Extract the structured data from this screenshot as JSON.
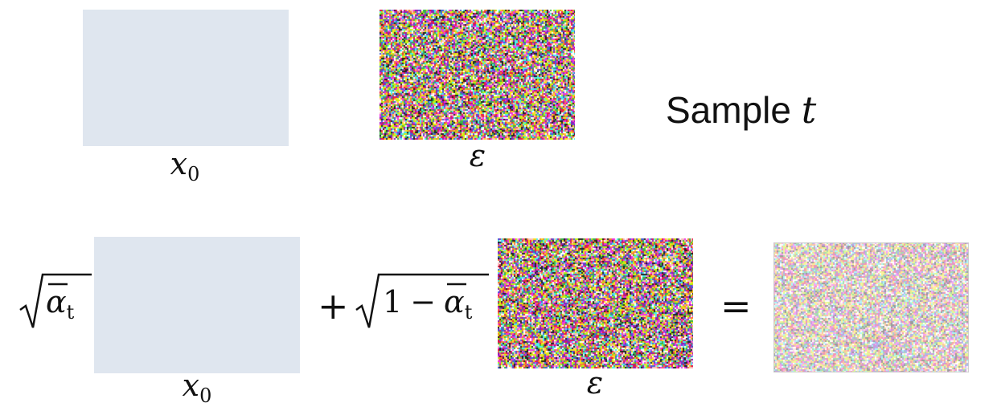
{
  "top_row": {
    "image_label": "x",
    "image_label_sub": "0",
    "noise_label": "ε",
    "sample_text": "Sample",
    "sample_var": "t"
  },
  "bottom_row": {
    "coef1_alpha": "α",
    "coef1_sub": "t",
    "plus": "+",
    "coef2_one": "1",
    "coef2_minus": "−",
    "coef2_alpha": "α",
    "coef2_sub": "t",
    "equals": "=",
    "image_label": "x",
    "image_label_sub": "0",
    "noise_label": "ε"
  },
  "colors": {
    "snow": "#eef2f7",
    "cat_body": "#3d3328",
    "noise_palette": [
      "#e6194b",
      "#3cb44b",
      "#ffe119",
      "#4363d8",
      "#f58231",
      "#911eb4",
      "#46f0f0",
      "#f032e6",
      "#ffffff",
      "#222222",
      "#bcf60c",
      "#fabebe"
    ]
  }
}
